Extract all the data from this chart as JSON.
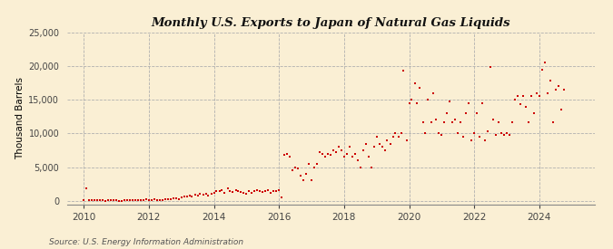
{
  "title": "Monthly U.S. Exports to Japan of Natural Gas Liquids",
  "ylabel": "Thousand Barrels",
  "source": "Source: U.S. Energy Information Administration",
  "background_color": "#faefd4",
  "dot_color": "#cc0000",
  "ylim": [
    -500,
    25000
  ],
  "yticks": [
    0,
    5000,
    10000,
    15000,
    20000,
    25000
  ],
  "ytick_labels": [
    "0",
    "5,000",
    "10,000",
    "15,000",
    "20,000",
    "25,000"
  ],
  "xtick_years": [
    2010,
    2012,
    2014,
    2016,
    2018,
    2020,
    2022,
    2024
  ],
  "xlim": [
    2009.5,
    2025.7
  ],
  "data": [
    [
      2010.0,
      150
    ],
    [
      2010.08,
      1800
    ],
    [
      2010.17,
      50
    ],
    [
      2010.25,
      100
    ],
    [
      2010.33,
      80
    ],
    [
      2010.42,
      50
    ],
    [
      2010.5,
      40
    ],
    [
      2010.58,
      60
    ],
    [
      2010.67,
      30
    ],
    [
      2010.75,
      100
    ],
    [
      2010.83,
      80
    ],
    [
      2010.92,
      50
    ],
    [
      2011.0,
      40
    ],
    [
      2011.08,
      -50
    ],
    [
      2011.17,
      -80
    ],
    [
      2011.25,
      60
    ],
    [
      2011.33,
      40
    ],
    [
      2011.42,
      80
    ],
    [
      2011.5,
      100
    ],
    [
      2011.58,
      120
    ],
    [
      2011.67,
      80
    ],
    [
      2011.75,
      150
    ],
    [
      2011.83,
      100
    ],
    [
      2011.92,
      200
    ],
    [
      2012.0,
      80
    ],
    [
      2012.08,
      60
    ],
    [
      2012.17,
      200
    ],
    [
      2012.25,
      150
    ],
    [
      2012.33,
      100
    ],
    [
      2012.42,
      80
    ],
    [
      2012.5,
      200
    ],
    [
      2012.58,
      250
    ],
    [
      2012.67,
      300
    ],
    [
      2012.75,
      350
    ],
    [
      2012.83,
      400
    ],
    [
      2012.92,
      300
    ],
    [
      2013.0,
      500
    ],
    [
      2013.08,
      600
    ],
    [
      2013.17,
      700
    ],
    [
      2013.25,
      800
    ],
    [
      2013.33,
      600
    ],
    [
      2013.42,
      900
    ],
    [
      2013.5,
      800
    ],
    [
      2013.58,
      1000
    ],
    [
      2013.67,
      900
    ],
    [
      2013.75,
      1100
    ],
    [
      2013.83,
      800
    ],
    [
      2013.92,
      1000
    ],
    [
      2014.0,
      1200
    ],
    [
      2014.08,
      1400
    ],
    [
      2014.17,
      1500
    ],
    [
      2014.25,
      1600
    ],
    [
      2014.33,
      1200
    ],
    [
      2014.42,
      1800
    ],
    [
      2014.5,
      1400
    ],
    [
      2014.58,
      1300
    ],
    [
      2014.67,
      1600
    ],
    [
      2014.75,
      1500
    ],
    [
      2014.83,
      1300
    ],
    [
      2014.92,
      1200
    ],
    [
      2015.0,
      1100
    ],
    [
      2015.08,
      1400
    ],
    [
      2015.17,
      1200
    ],
    [
      2015.25,
      1500
    ],
    [
      2015.33,
      1600
    ],
    [
      2015.42,
      1400
    ],
    [
      2015.5,
      1300
    ],
    [
      2015.58,
      1500
    ],
    [
      2015.67,
      1600
    ],
    [
      2015.75,
      1200
    ],
    [
      2015.83,
      1400
    ],
    [
      2015.92,
      1500
    ],
    [
      2016.0,
      1600
    ],
    [
      2016.08,
      500
    ],
    [
      2016.17,
      6800
    ],
    [
      2016.25,
      7000
    ],
    [
      2016.33,
      6500
    ],
    [
      2016.42,
      4500
    ],
    [
      2016.5,
      5000
    ],
    [
      2016.58,
      4800
    ],
    [
      2016.67,
      3800
    ],
    [
      2016.75,
      3000
    ],
    [
      2016.83,
      4000
    ],
    [
      2016.92,
      5500
    ],
    [
      2017.0,
      3000
    ],
    [
      2017.08,
      5000
    ],
    [
      2017.17,
      5500
    ],
    [
      2017.25,
      7200
    ],
    [
      2017.33,
      7000
    ],
    [
      2017.42,
      6500
    ],
    [
      2017.5,
      7000
    ],
    [
      2017.58,
      6800
    ],
    [
      2017.67,
      7500
    ],
    [
      2017.75,
      7200
    ],
    [
      2017.83,
      8000
    ],
    [
      2017.92,
      7500
    ],
    [
      2018.0,
      6500
    ],
    [
      2018.08,
      7000
    ],
    [
      2018.17,
      8000
    ],
    [
      2018.25,
      6500
    ],
    [
      2018.33,
      7000
    ],
    [
      2018.42,
      6000
    ],
    [
      2018.5,
      5000
    ],
    [
      2018.58,
      7500
    ],
    [
      2018.67,
      8500
    ],
    [
      2018.75,
      6500
    ],
    [
      2018.83,
      5000
    ],
    [
      2018.92,
      8000
    ],
    [
      2019.0,
      9500
    ],
    [
      2019.08,
      8500
    ],
    [
      2019.17,
      8000
    ],
    [
      2019.25,
      7500
    ],
    [
      2019.33,
      9000
    ],
    [
      2019.42,
      8500
    ],
    [
      2019.5,
      9500
    ],
    [
      2019.58,
      10000
    ],
    [
      2019.67,
      9500
    ],
    [
      2019.75,
      10000
    ],
    [
      2019.83,
      19300
    ],
    [
      2019.92,
      9000
    ],
    [
      2020.0,
      14500
    ],
    [
      2020.08,
      15000
    ],
    [
      2020.17,
      17500
    ],
    [
      2020.25,
      14500
    ],
    [
      2020.33,
      16800
    ],
    [
      2020.42,
      11700
    ],
    [
      2020.5,
      10000
    ],
    [
      2020.58,
      15000
    ],
    [
      2020.67,
      11700
    ],
    [
      2020.75,
      16000
    ],
    [
      2020.83,
      12000
    ],
    [
      2020.92,
      10000
    ],
    [
      2021.0,
      9800
    ],
    [
      2021.08,
      11700
    ],
    [
      2021.17,
      13000
    ],
    [
      2021.25,
      14800
    ],
    [
      2021.33,
      11700
    ],
    [
      2021.42,
      12000
    ],
    [
      2021.5,
      10000
    ],
    [
      2021.58,
      11700
    ],
    [
      2021.67,
      9500
    ],
    [
      2021.75,
      13000
    ],
    [
      2021.83,
      14500
    ],
    [
      2021.92,
      9000
    ],
    [
      2022.0,
      10000
    ],
    [
      2022.08,
      13000
    ],
    [
      2022.17,
      9500
    ],
    [
      2022.25,
      14500
    ],
    [
      2022.33,
      9000
    ],
    [
      2022.42,
      10300
    ],
    [
      2022.5,
      19800
    ],
    [
      2022.58,
      12000
    ],
    [
      2022.67,
      9800
    ],
    [
      2022.75,
      11700
    ],
    [
      2022.83,
      10000
    ],
    [
      2022.92,
      9800
    ],
    [
      2023.0,
      10000
    ],
    [
      2023.08,
      9800
    ],
    [
      2023.17,
      11700
    ],
    [
      2023.25,
      15000
    ],
    [
      2023.33,
      15500
    ],
    [
      2023.42,
      14300
    ],
    [
      2023.5,
      15500
    ],
    [
      2023.58,
      14000
    ],
    [
      2023.67,
      11700
    ],
    [
      2023.75,
      15500
    ],
    [
      2023.83,
      13000
    ],
    [
      2023.92,
      16000
    ],
    [
      2024.0,
      15500
    ],
    [
      2024.08,
      19500
    ],
    [
      2024.17,
      20500
    ],
    [
      2024.25,
      16000
    ],
    [
      2024.33,
      17800
    ],
    [
      2024.42,
      11700
    ],
    [
      2024.5,
      16500
    ],
    [
      2024.58,
      17000
    ],
    [
      2024.67,
      13500
    ],
    [
      2024.75,
      16500
    ]
  ]
}
